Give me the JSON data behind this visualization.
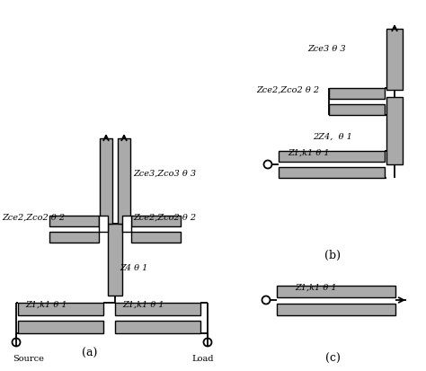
{
  "bg_color": "#ffffff",
  "box_fill": "#aaaaaa",
  "box_fill_dark": "#888888",
  "box_edge": "#000000",
  "fig_width": 4.74,
  "fig_height": 4.13,
  "dpi": 100,
  "labels": {
    "zce3_zco3": "Zce3,Zco3 θ 3",
    "zce2_zco2_left": "Zce2,Zco2 θ 2",
    "zce2_zco2_right": "Zce2,Zco2 θ 2",
    "z4": "Z4 θ 1",
    "z1k1_left": "Z1,k1 θ 1",
    "z1k1_right": "Z1,k1 θ 1",
    "source": "Source",
    "load": "Load",
    "zce3_b": "Zce3 θ 3",
    "zce2_zco2_b": "Zce2,Zco2 θ 2",
    "2z4": "2Z4,  θ 1",
    "z1k1_b": "Z1,k1 θ 1",
    "z1k1_c": "Z1,k1 θ 1",
    "a_label": "(a)",
    "b_label": "(b)",
    "c_label": "(c)"
  }
}
